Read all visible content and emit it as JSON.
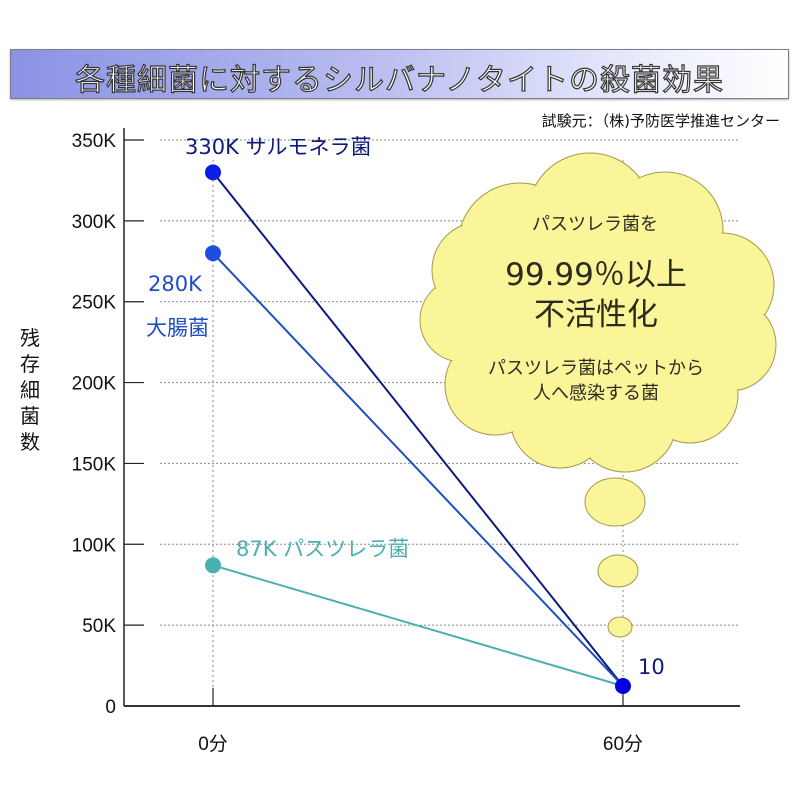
{
  "header": {
    "title": "各種細菌に対するシルバナノタイトの殺菌効果",
    "source": "試験元：（株)予防医学推進センター"
  },
  "callout": {
    "line1": "パスツレラ菌を",
    "line2": "99.99％以上",
    "line3": "不活性化",
    "line4": "パスツレラ菌はペットから",
    "line5": "人へ感染する菌"
  },
  "colors": {
    "salmonella": "#0d1a7a",
    "ecoli": "#1f4fbf",
    "pasteurella": "#4ab0b0",
    "end_point": "#0000e0",
    "cloud_fill": "#fbf59a",
    "cloud_stroke": "#a39a4a"
  },
  "chart_data": {
    "type": "line",
    "title": "各種細菌に対するシルバナノタイトの殺菌効果",
    "xlabel": "",
    "ylabel": "残存細菌数",
    "ylim": [
      0,
      350000
    ],
    "categories": [
      "0分",
      "60分"
    ],
    "yticks": [
      {
        "value": 350000,
        "label": "350K"
      },
      {
        "value": 300000,
        "label": "300K"
      },
      {
        "value": 250000,
        "label": "250K"
      },
      {
        "value": 200000,
        "label": "200K"
      },
      {
        "value": 150000,
        "label": "150K"
      },
      {
        "value": 100000,
        "label": "100K"
      },
      {
        "value": 50000,
        "label": "50K"
      },
      {
        "value": 0,
        "label": "0"
      }
    ],
    "grid": true,
    "series": [
      {
        "name": "サルモネラ菌",
        "key": "salmonella",
        "values": [
          330000,
          10
        ],
        "start_label": "330K",
        "label_text": "330K  サルモネラ菌"
      },
      {
        "name": "大腸菌",
        "key": "ecoli",
        "values": [
          280000,
          10
        ],
        "start_label": "280K",
        "label_text": "大腸菌"
      },
      {
        "name": "パスツレラ菌",
        "key": "pasteurella",
        "values": [
          87000,
          10
        ],
        "start_label": "87K",
        "label_text": "87K パスツレラ菌"
      }
    ],
    "end_label": "10"
  }
}
